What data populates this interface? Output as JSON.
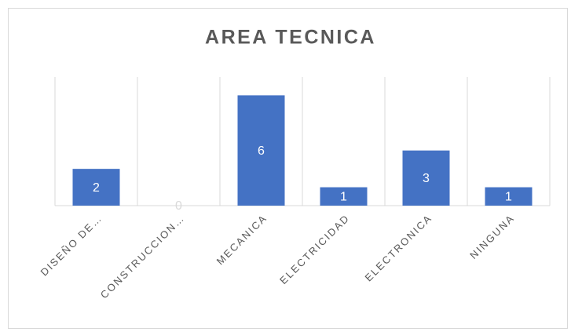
{
  "chart_data": {
    "type": "bar",
    "title": "AREA TECNICA",
    "categories": [
      "DISEÑO DE…",
      "CONSTRUCCION…",
      "MECANICA",
      "ELECTRICIDAD",
      "ELECTRONICA",
      "NINGUNA"
    ],
    "values": [
      2,
      0,
      6,
      1,
      3,
      1
    ],
    "color": "#4472c4",
    "ylim": [
      0,
      7
    ]
  }
}
